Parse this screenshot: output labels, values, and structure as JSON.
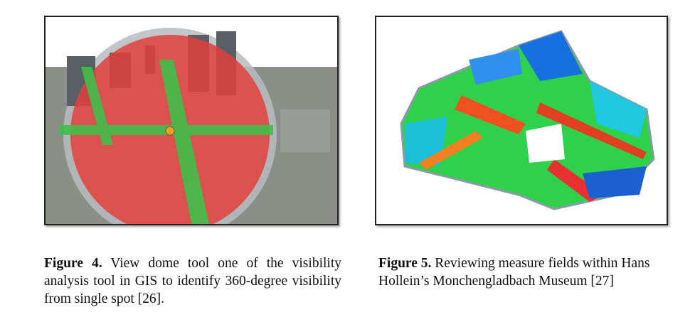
{
  "figures": [
    {
      "label": "Figure 4.",
      "caption": "View dome tool one of the visibility analysis tool in GIS to identify 360-degree visibility from single spot [26]."
    },
    {
      "label": "Figure 5.",
      "caption": "Reviewing measure fields within Hans Hollein’s Monchengladbach Museum [27]"
    }
  ]
}
